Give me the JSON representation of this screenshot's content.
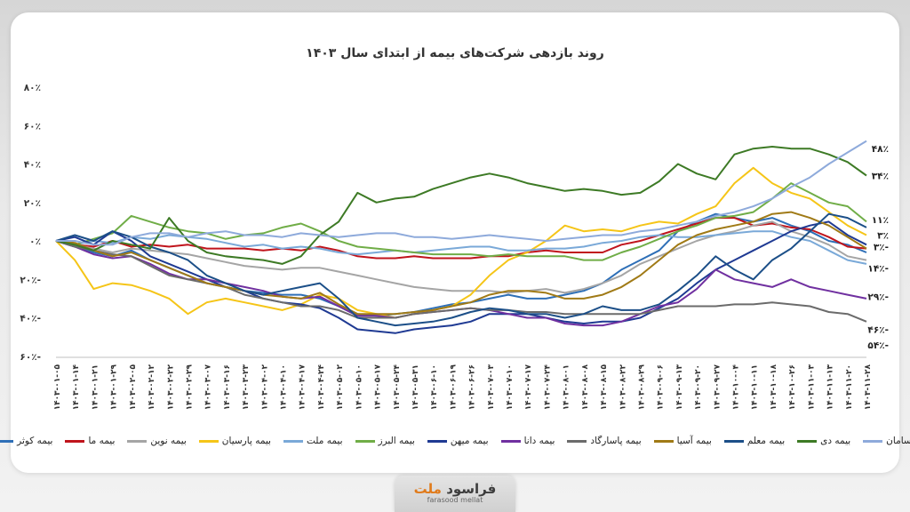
{
  "chart_data": {
    "type": "line",
    "title": "روند بازدهی شرکت‌های بیمه از ابتدای سال ۱۴۰۳",
    "ylabel": "",
    "xlabel": "",
    "ylim": [
      -60,
      80
    ],
    "yticks": [
      80,
      60,
      40,
      20,
      0,
      -20,
      -40,
      -60
    ],
    "ytick_labels": [
      "۸۰٪",
      "۶۰٪",
      "۴۰٪",
      "۲۰٪",
      "۰٪",
      "۲۰٪-",
      "۴۰٪-",
      "۶۰٪-"
    ],
    "grid": false,
    "legend_position": "bottom",
    "x_tick_labels": [
      "۱۴۰۳-۰۱-۰۵",
      "۱۴۰۳-۰۱-۱۴",
      "۱۴۰۳-۰۱-۲۱",
      "۱۴۰۳-۰۱-۲۹",
      "۱۴۰۳-۰۲-۰۵",
      "۱۴۰۳-۰۲-۱۲",
      "۱۴۰۳-۰۲-۲۲",
      "۱۴۰۳-۰۲-۲۹",
      "۱۴۰۳-۰۳-۰۷",
      "۱۴۰۳-۰۳-۱۶",
      "۱۴۰۳-۰۳-۲۳",
      "۱۴۰۳-۰۴-۰۲",
      "۱۴۰۳-۰۴-۱۰",
      "۱۴۰۳-۰۴-۱۷",
      "۱۴۰۳-۰۴-۲۴",
      "۱۴۰۳-۰۵-۰۲",
      "۱۴۰۳-۰۵-۱۰",
      "۱۴۰۳-۰۵-۱۷",
      "۱۴۰۳-۰۵-۲۴",
      "۱۴۰۳-۰۵-۳۱",
      "۱۴۰۳-۰۶-۱۰",
      "۱۴۰۳-۰۶-۱۹",
      "۱۴۰۳-۰۶-۲۶",
      "۱۴۰۳-۰۷-۰۳",
      "۱۴۰۳-۰۷-۱۰",
      "۱۴۰۳-۰۷-۱۷",
      "۱۴۰۳-۰۷-۲۴",
      "۱۴۰۳-۰۸-۰۱",
      "۱۴۰۳-۰۸-۰۸",
      "۱۴۰۳-۰۸-۱۵",
      "۱۴۰۳-۰۸-۲۲",
      "۱۴۰۳-۰۸-۲۹",
      "۱۴۰۳-۰۹-۰۶",
      "۱۴۰۳-۰۹-۱۳",
      "۱۴۰۳-۰۹-۲۰",
      "۱۴۰۳-۰۹-۲۷",
      "۱۴۰۳-۱۰-۰۴",
      "۱۴۰۳-۱۰-۱۱",
      "۱۴۰۳-۱۰-۱۸",
      "۱۴۰۳-۱۰-۲۶",
      "۱۴۰۳-۱۱-۰۳",
      "۱۴۰۳-۱۱-۱۳",
      "۱۴۰۳-۱۱-۲۰",
      "۱۴۰۳-۱۱-۲۸"
    ],
    "series": [
      {
        "name": "بیمه کوثر",
        "color": "#2e6fb7",
        "values": [
          0,
          -3,
          -6,
          -8,
          -5,
          -10,
          -14,
          -18,
          -22,
          -24,
          -26,
          -27,
          -28,
          -28,
          -30,
          -34,
          -38,
          -39,
          -38,
          -37,
          -35,
          -33,
          -32,
          -30,
          -28,
          -30,
          -30,
          -28,
          -26,
          -22,
          -15,
          -10,
          -5,
          5,
          10,
          14,
          12,
          10,
          12,
          8,
          5,
          0,
          -2,
          -6
        ]
      },
      {
        "name": "بیمه ما",
        "color": "#c0141c",
        "values": [
          0,
          -2,
          -3,
          0,
          -3,
          -2,
          -3,
          -2,
          -4,
          -4,
          -4,
          -5,
          -4,
          -5,
          -3,
          -5,
          -8,
          -9,
          -9,
          -8,
          -9,
          -9,
          -9,
          -8,
          -8,
          -6,
          -5,
          -6,
          -6,
          -6,
          -2,
          0,
          3,
          6,
          9,
          12,
          12,
          8,
          9,
          7,
          6,
          2,
          -3,
          -4
        ]
      },
      {
        "name": "بیمه نوین",
        "color": "#a5a5a5",
        "values": [
          0,
          -2,
          -4,
          -6,
          -4,
          -5,
          -6,
          -7,
          -9,
          -11,
          -13,
          -14,
          -15,
          -14,
          -14,
          -16,
          -18,
          -20,
          -22,
          -24,
          -25,
          -26,
          -26,
          -26,
          -27,
          -26,
          -25,
          -27,
          -25,
          -22,
          -18,
          -12,
          -8,
          -4,
          0,
          3,
          5,
          8,
          10,
          5,
          2,
          -2,
          -8,
          -10
        ]
      },
      {
        "name": "بیمه پارسیان",
        "color": "#f5c518",
        "values": [
          0,
          -10,
          -25,
          -22,
          -23,
          -26,
          -30,
          -38,
          -32,
          -30,
          -32,
          -34,
          -36,
          -33,
          -28,
          -30,
          -36,
          -38,
          -40,
          -38,
          -36,
          -34,
          -28,
          -18,
          -10,
          -6,
          0,
          8,
          5,
          6,
          5,
          8,
          10,
          9,
          14,
          18,
          30,
          38,
          30,
          25,
          22,
          15,
          8,
          3
        ]
      },
      {
        "name": "بیمه ملت",
        "color": "#7aa9d8",
        "values": [
          0,
          -2,
          0,
          -1,
          2,
          1,
          3,
          2,
          1,
          -1,
          -3,
          -2,
          -4,
          -3,
          -4,
          -6,
          -7,
          -6,
          -5,
          -6,
          -5,
          -4,
          -3,
          -3,
          -5,
          -5,
          -4,
          -4,
          -3,
          -1,
          0,
          2,
          3,
          2,
          2,
          3,
          4,
          5,
          5,
          2,
          0,
          -5,
          -10,
          -12
        ]
      },
      {
        "name": "بیمه البرز",
        "color": "#70ad47",
        "values": [
          0,
          -2,
          1,
          4,
          13,
          10,
          7,
          5,
          4,
          1,
          3,
          4,
          7,
          9,
          5,
          0,
          -3,
          -4,
          -5,
          -6,
          -7,
          -7,
          -7,
          -8,
          -7,
          -8,
          -8,
          -8,
          -10,
          -10,
          -6,
          -3,
          1,
          5,
          8,
          12,
          13,
          15,
          22,
          30,
          25,
          20,
          18,
          10
        ]
      },
      {
        "name": "بیمه میهن",
        "color": "#1f3a93",
        "values": [
          0,
          2,
          -2,
          5,
          0,
          -8,
          -12,
          -16,
          -20,
          -24,
          -26,
          -30,
          -32,
          -33,
          -35,
          -40,
          -46,
          -47,
          -48,
          -46,
          -45,
          -44,
          -42,
          -38,
          -38,
          -38,
          -40,
          -42,
          -43,
          -42,
          -42,
          -40,
          -35,
          -30,
          -22,
          -15,
          -10,
          -5,
          0,
          5,
          8,
          10,
          3,
          -2
        ]
      },
      {
        "name": "بیمه دانا",
        "color": "#7030a0",
        "values": [
          0,
          -3,
          -7,
          -9,
          -8,
          -12,
          -17,
          -20,
          -20,
          -22,
          -24,
          -26,
          -29,
          -30,
          -29,
          -34,
          -39,
          -39,
          -40,
          -38,
          -37,
          -36,
          -35,
          -36,
          -38,
          -40,
          -40,
          -43,
          -44,
          -44,
          -42,
          -38,
          -34,
          -32,
          -25,
          -15,
          -20,
          -22,
          -24,
          -20,
          -24,
          -26,
          -28,
          -30
        ]
      },
      {
        "name": "بیمه پاسارگاد",
        "color": "#6b6b6b",
        "values": [
          0,
          -3,
          -5,
          -7,
          -8,
          -13,
          -18,
          -20,
          -22,
          -24,
          -28,
          -30,
          -32,
          -34,
          -34,
          -36,
          -40,
          -40,
          -40,
          -38,
          -37,
          -36,
          -35,
          -36,
          -36,
          -37,
          -37,
          -38,
          -38,
          -38,
          -38,
          -38,
          -36,
          -34,
          -34,
          -34,
          -33,
          -33,
          -32,
          -33,
          -34,
          -37,
          -38,
          -42
        ]
      },
      {
        "name": "بیمه آسیا",
        "color": "#a07a16",
        "values": [
          0,
          -1,
          -5,
          -8,
          -6,
          -10,
          -14,
          -18,
          -22,
          -24,
          -26,
          -28,
          -29,
          -30,
          -27,
          -33,
          -38,
          -38,
          -38,
          -37,
          -36,
          -34,
          -32,
          -28,
          -26,
          -26,
          -27,
          -30,
          -30,
          -28,
          -24,
          -18,
          -10,
          -2,
          3,
          6,
          8,
          10,
          14,
          15,
          12,
          8,
          2,
          -4
        ]
      },
      {
        "name": "بیمه معلم",
        "color": "#1c4f88",
        "values": [
          0,
          3,
          0,
          5,
          2,
          -3,
          -6,
          -10,
          -18,
          -22,
          -26,
          -28,
          -26,
          -24,
          -22,
          -30,
          -40,
          -42,
          -44,
          -43,
          -42,
          -40,
          -37,
          -35,
          -36,
          -38,
          -38,
          -40,
          -38,
          -34,
          -36,
          -36,
          -33,
          -26,
          -18,
          -8,
          -15,
          -20,
          -10,
          -4,
          5,
          14,
          12,
          7
        ]
      },
      {
        "name": "بیمه دی",
        "color": "#3d7a25",
        "values": [
          0,
          -2,
          -5,
          0,
          -2,
          -4,
          12,
          0,
          -6,
          -8,
          -9,
          -10,
          -12,
          -8,
          3,
          10,
          25,
          20,
          22,
          23,
          27,
          30,
          33,
          35,
          33,
          30,
          28,
          26,
          27,
          26,
          24,
          25,
          31,
          40,
          35,
          32,
          45,
          48,
          49,
          48,
          48,
          45,
          41,
          34
        ]
      },
      {
        "name": "بیمه سامان",
        "color": "#8eaadb",
        "values": [
          0,
          0,
          -2,
          -2,
          2,
          4,
          4,
          2,
          4,
          5,
          3,
          3,
          2,
          4,
          3,
          2,
          3,
          4,
          4,
          2,
          2,
          1,
          2,
          3,
          2,
          1,
          0,
          1,
          2,
          3,
          3,
          5,
          6,
          8,
          10,
          13,
          15,
          18,
          22,
          28,
          33,
          40,
          46,
          52
        ]
      }
    ],
    "end_labels": [
      "۴۸٪",
      "۳۴٪",
      "۱۱٪",
      "۳٪",
      "۳٪-",
      "۱۴٪-",
      "۲۹٪-",
      "۴۶٪-",
      "۵۴٪-"
    ]
  },
  "branding": {
    "logo_text_dark": "فراسود",
    "logo_text_accent": "ملت",
    "logo_subtext": "farasood mellat"
  }
}
